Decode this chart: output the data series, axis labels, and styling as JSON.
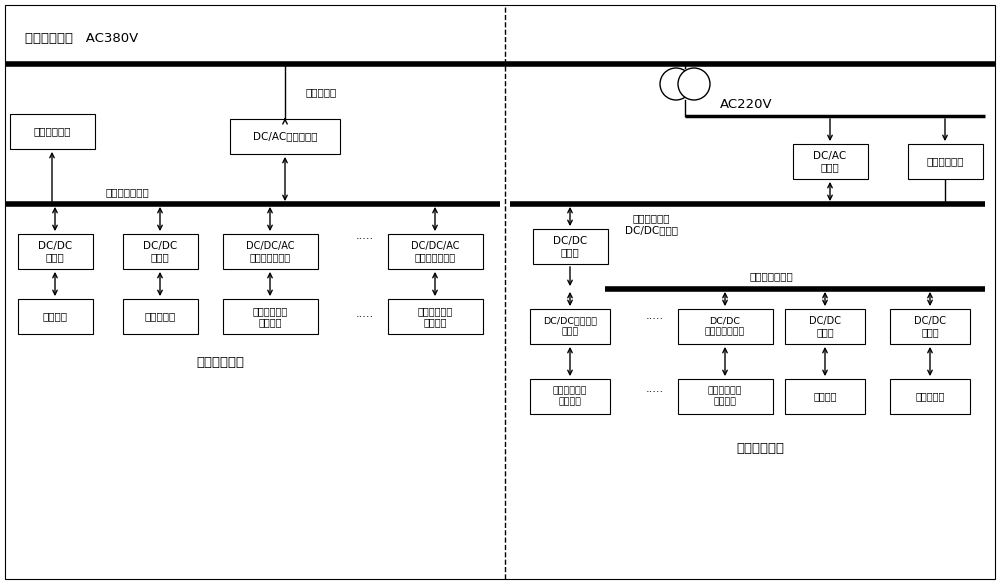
{
  "bg_color": "#ffffff",
  "text_color": "#000000",
  "fig_width": 10.0,
  "fig_height": 5.84,
  "top_label": "主网（三相）   AC380V",
  "ac220_label": "AC220V",
  "high_dc_label": "高压侧直流母线",
  "low_dc_label": "低压侧直流母线",
  "high_low_dc_label": "高低压侧直流\nDC/DC变换器",
  "ac_contactor_label": "交流接触器",
  "dc_ac_grid_label": "DC/AC并网变流器",
  "dc_ac_label": "DC/AC\n变流器",
  "three_phase_load_label": "三相网侧负载",
  "single_phase_load_label": "单相网侧负载",
  "dc_dc1_label": "DC/DC\n变流器",
  "dc_dc2_label": "DC/DC\n变流器",
  "dc_dcac3_label": "DC/DC/AC\n三相测试变流器",
  "dc_dcac4_label": "DC/DC/AC\n三相测试变流器",
  "storage_label": "储能系统",
  "super_cap_label": "超级电容组",
  "power_bat1_label": "动力蓄电池组\n（待测）",
  "power_bat2_label": "动力蓄电池组\n（待测）",
  "large_zone_label": "大功率测试区",
  "small_zone_label": "小功率测试区",
  "dc_dc_single1_label": "DC/DC单相测试\n变流器",
  "dc_dc_single2_label": "DC/DC\n单相测试变流器",
  "dc_dc_s3_label": "DC/DC\n变流器",
  "dc_dc_s4_label": "DC/DC\n变流器",
  "dc_dc_hl_label": "DC/DC\n变流器",
  "small_bat1_label": "动力蓄电池组\n（待测）",
  "small_bat2_label": "动力蓄电池组\n（待测）",
  "small_storage_label": "储能系统",
  "small_super_cap_label": "超级电容组"
}
